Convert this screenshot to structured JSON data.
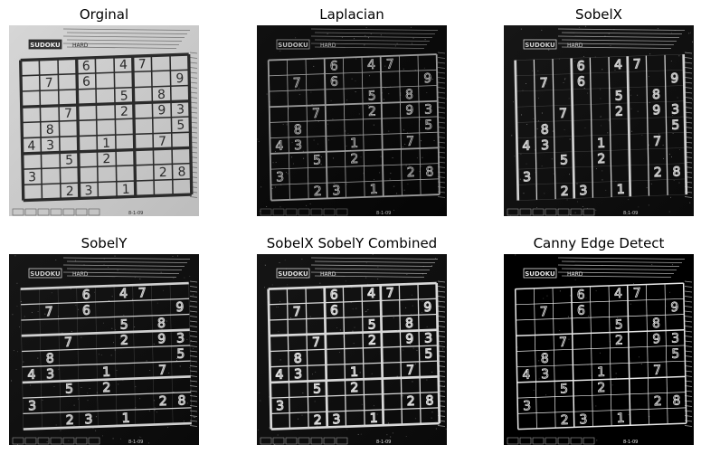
{
  "titles": [
    "Orginal",
    "Laplacian",
    "SobelX",
    "SobelY",
    "SobelX SobelY Combined",
    "Canny Edge Detect"
  ],
  "puzzle": {
    "header": "SUDOKU",
    "difficulty": "HARD",
    "footer": "8-1-09",
    "rows": [
      [
        "",
        "",
        "",
        "6",
        "",
        "4",
        "7",
        "",
        ""
      ],
      [
        "",
        "7",
        "",
        "6",
        "",
        "",
        "",
        "",
        "9"
      ],
      [
        "",
        "",
        "",
        "",
        "",
        "5",
        "",
        "8",
        ""
      ],
      [
        "",
        "",
        "7",
        "",
        "",
        "2",
        "",
        "9",
        "3"
      ],
      [
        "",
        "8",
        "",
        "",
        "",
        "",
        "",
        "",
        "5"
      ],
      [
        "4",
        "3",
        "",
        "",
        "1",
        "",
        "",
        "7",
        ""
      ],
      [
        "",
        "",
        "5",
        "",
        "2",
        "",
        "",
        "",
        ""
      ],
      [
        "3",
        "",
        "",
        "",
        "",
        "",
        "",
        "2",
        "8"
      ],
      [
        "",
        "",
        "2",
        "3",
        "",
        "1",
        "",
        "",
        ""
      ]
    ]
  }
}
